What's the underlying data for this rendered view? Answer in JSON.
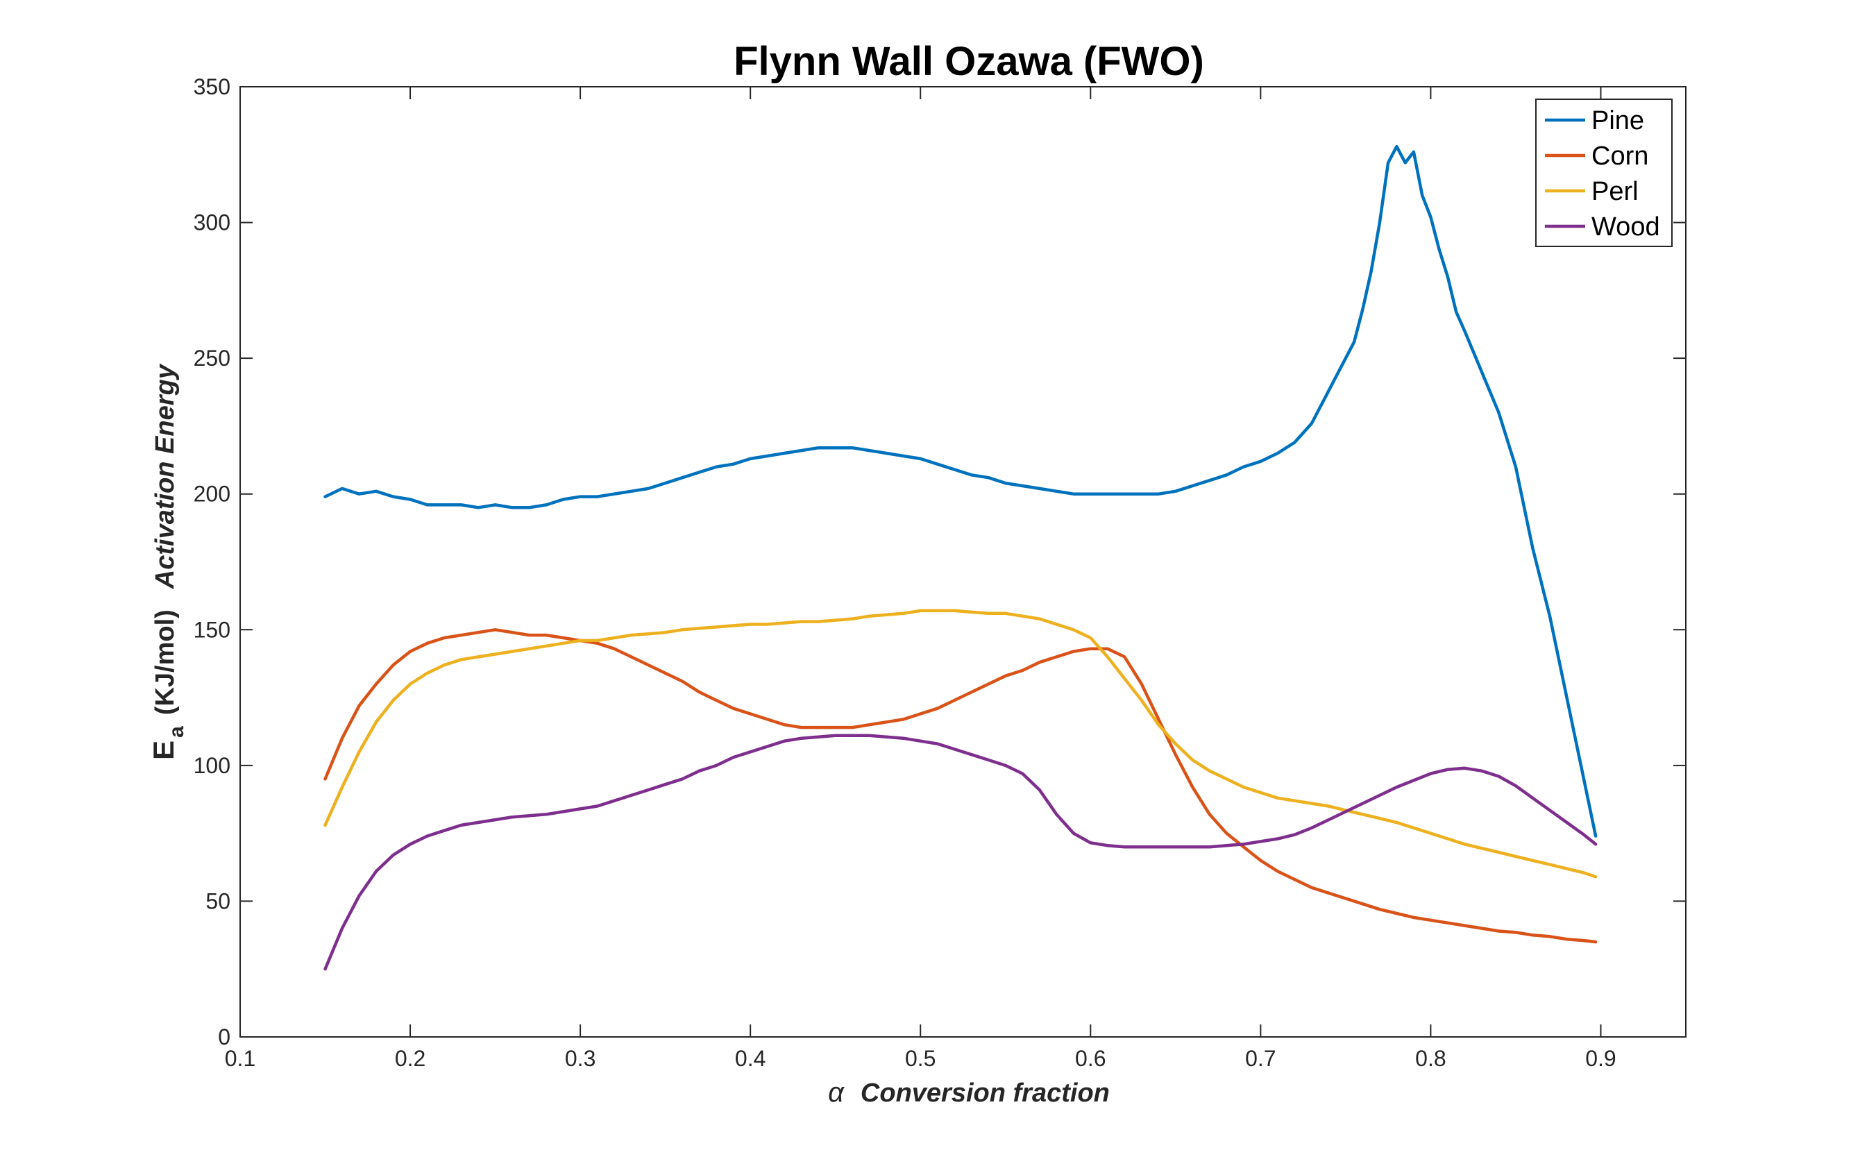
{
  "chart_data": {
    "type": "line",
    "title": "Flynn Wall Ozawa (FWO)",
    "xlabel": {
      "symbol": "α",
      "text": "Conversion fraction"
    },
    "ylabel": {
      "symbol": "E",
      "subscript": "a",
      "unit": "(KJ/mol)",
      "text": "Activation Energy"
    },
    "xlim": [
      0.1,
      0.95
    ],
    "ylim": [
      0,
      350
    ],
    "xticks": [
      0.1,
      0.2,
      0.3,
      0.4,
      0.5,
      0.6,
      0.7,
      0.8,
      0.9
    ],
    "xtick_labels": [
      "0.1",
      "0.2",
      "0.3",
      "0.4",
      "0.5",
      "0.6",
      "0.7",
      "0.8",
      "0.9"
    ],
    "yticks": [
      0,
      50,
      100,
      150,
      200,
      250,
      300,
      350
    ],
    "ytick_labels": [
      "0",
      "50",
      "100",
      "150",
      "200",
      "250",
      "300",
      "350"
    ],
    "grid": false,
    "legend_position": "top-right",
    "series": [
      {
        "name": "Pine",
        "color": "#0072BD",
        "points": [
          [
            0.15,
            199
          ],
          [
            0.16,
            202
          ],
          [
            0.17,
            200
          ],
          [
            0.18,
            201
          ],
          [
            0.19,
            199
          ],
          [
            0.2,
            198
          ],
          [
            0.21,
            196
          ],
          [
            0.22,
            196
          ],
          [
            0.23,
            196
          ],
          [
            0.24,
            195
          ],
          [
            0.25,
            196
          ],
          [
            0.26,
            195
          ],
          [
            0.27,
            195
          ],
          [
            0.28,
            196
          ],
          [
            0.29,
            198
          ],
          [
            0.3,
            199
          ],
          [
            0.31,
            199
          ],
          [
            0.32,
            200
          ],
          [
            0.33,
            201
          ],
          [
            0.34,
            202
          ],
          [
            0.35,
            204
          ],
          [
            0.36,
            206
          ],
          [
            0.37,
            208
          ],
          [
            0.38,
            210
          ],
          [
            0.39,
            211
          ],
          [
            0.4,
            213
          ],
          [
            0.41,
            214
          ],
          [
            0.42,
            215
          ],
          [
            0.43,
            216
          ],
          [
            0.44,
            217
          ],
          [
            0.45,
            217
          ],
          [
            0.46,
            217
          ],
          [
            0.47,
            216
          ],
          [
            0.48,
            215
          ],
          [
            0.49,
            214
          ],
          [
            0.5,
            213
          ],
          [
            0.51,
            211
          ],
          [
            0.52,
            209
          ],
          [
            0.53,
            207
          ],
          [
            0.54,
            206
          ],
          [
            0.55,
            204
          ],
          [
            0.56,
            203
          ],
          [
            0.57,
            202
          ],
          [
            0.58,
            201
          ],
          [
            0.59,
            200
          ],
          [
            0.6,
            200
          ],
          [
            0.61,
            200
          ],
          [
            0.62,
            200
          ],
          [
            0.63,
            200
          ],
          [
            0.64,
            200
          ],
          [
            0.65,
            201
          ],
          [
            0.66,
            203
          ],
          [
            0.67,
            205
          ],
          [
            0.68,
            207
          ],
          [
            0.69,
            210
          ],
          [
            0.7,
            212
          ],
          [
            0.71,
            215
          ],
          [
            0.72,
            219
          ],
          [
            0.73,
            226
          ],
          [
            0.74,
            238
          ],
          [
            0.75,
            250
          ],
          [
            0.755,
            256
          ],
          [
            0.76,
            268
          ],
          [
            0.765,
            282
          ],
          [
            0.77,
            300
          ],
          [
            0.775,
            322
          ],
          [
            0.78,
            328
          ],
          [
            0.785,
            322
          ],
          [
            0.79,
            326
          ],
          [
            0.795,
            310
          ],
          [
            0.8,
            302
          ],
          [
            0.805,
            290
          ],
          [
            0.81,
            280
          ],
          [
            0.815,
            267
          ],
          [
            0.82,
            260
          ],
          [
            0.83,
            245
          ],
          [
            0.84,
            230
          ],
          [
            0.85,
            210
          ],
          [
            0.86,
            180
          ],
          [
            0.87,
            155
          ],
          [
            0.88,
            125
          ],
          [
            0.89,
            95
          ],
          [
            0.897,
            74
          ]
        ]
      },
      {
        "name": "Corn",
        "color": "#D95319",
        "points": [
          [
            0.15,
            95
          ],
          [
            0.16,
            110
          ],
          [
            0.17,
            122
          ],
          [
            0.18,
            130
          ],
          [
            0.19,
            137
          ],
          [
            0.2,
            142
          ],
          [
            0.21,
            145
          ],
          [
            0.22,
            147
          ],
          [
            0.23,
            148
          ],
          [
            0.24,
            149
          ],
          [
            0.25,
            150
          ],
          [
            0.26,
            149
          ],
          [
            0.27,
            148
          ],
          [
            0.28,
            148
          ],
          [
            0.29,
            147
          ],
          [
            0.3,
            146
          ],
          [
            0.31,
            145
          ],
          [
            0.32,
            143
          ],
          [
            0.33,
            140
          ],
          [
            0.34,
            137
          ],
          [
            0.35,
            134
          ],
          [
            0.36,
            131
          ],
          [
            0.37,
            127
          ],
          [
            0.38,
            124
          ],
          [
            0.39,
            121
          ],
          [
            0.4,
            119
          ],
          [
            0.41,
            117
          ],
          [
            0.42,
            115
          ],
          [
            0.43,
            114
          ],
          [
            0.44,
            114
          ],
          [
            0.45,
            114
          ],
          [
            0.46,
            114
          ],
          [
            0.47,
            115
          ],
          [
            0.48,
            116
          ],
          [
            0.49,
            117
          ],
          [
            0.5,
            119
          ],
          [
            0.51,
            121
          ],
          [
            0.52,
            124
          ],
          [
            0.53,
            127
          ],
          [
            0.54,
            130
          ],
          [
            0.55,
            133
          ],
          [
            0.56,
            135
          ],
          [
            0.57,
            138
          ],
          [
            0.58,
            140
          ],
          [
            0.59,
            142
          ],
          [
            0.6,
            143
          ],
          [
            0.61,
            143
          ],
          [
            0.62,
            140
          ],
          [
            0.63,
            130
          ],
          [
            0.64,
            117
          ],
          [
            0.65,
            104
          ],
          [
            0.66,
            92
          ],
          [
            0.67,
            82
          ],
          [
            0.68,
            75
          ],
          [
            0.69,
            70
          ],
          [
            0.7,
            65
          ],
          [
            0.71,
            61
          ],
          [
            0.72,
            58
          ],
          [
            0.73,
            55
          ],
          [
            0.74,
            53
          ],
          [
            0.75,
            51
          ],
          [
            0.76,
            49
          ],
          [
            0.77,
            47
          ],
          [
            0.78,
            45.5
          ],
          [
            0.79,
            44
          ],
          [
            0.8,
            43
          ],
          [
            0.81,
            42
          ],
          [
            0.82,
            41
          ],
          [
            0.83,
            40
          ],
          [
            0.84,
            39
          ],
          [
            0.85,
            38.5
          ],
          [
            0.86,
            37.5
          ],
          [
            0.87,
            37
          ],
          [
            0.88,
            36
          ],
          [
            0.89,
            35.5
          ],
          [
            0.897,
            35
          ]
        ]
      },
      {
        "name": "Perl",
        "color": "#EDB120",
        "points": [
          [
            0.15,
            78
          ],
          [
            0.16,
            92
          ],
          [
            0.17,
            105
          ],
          [
            0.18,
            116
          ],
          [
            0.19,
            124
          ],
          [
            0.2,
            130
          ],
          [
            0.21,
            134
          ],
          [
            0.22,
            137
          ],
          [
            0.23,
            139
          ],
          [
            0.24,
            140
          ],
          [
            0.25,
            141
          ],
          [
            0.26,
            142
          ],
          [
            0.27,
            143
          ],
          [
            0.28,
            144
          ],
          [
            0.29,
            145
          ],
          [
            0.3,
            146
          ],
          [
            0.31,
            146
          ],
          [
            0.32,
            147
          ],
          [
            0.33,
            148
          ],
          [
            0.34,
            148.5
          ],
          [
            0.35,
            149
          ],
          [
            0.36,
            150
          ],
          [
            0.37,
            150.5
          ],
          [
            0.38,
            151
          ],
          [
            0.39,
            151.5
          ],
          [
            0.4,
            152
          ],
          [
            0.41,
            152
          ],
          [
            0.42,
            152.5
          ],
          [
            0.43,
            153
          ],
          [
            0.44,
            153
          ],
          [
            0.45,
            153.5
          ],
          [
            0.46,
            154
          ],
          [
            0.47,
            155
          ],
          [
            0.48,
            155.5
          ],
          [
            0.49,
            156
          ],
          [
            0.5,
            157
          ],
          [
            0.51,
            157
          ],
          [
            0.52,
            157
          ],
          [
            0.53,
            156.5
          ],
          [
            0.54,
            156
          ],
          [
            0.55,
            156
          ],
          [
            0.56,
            155
          ],
          [
            0.57,
            154
          ],
          [
            0.58,
            152
          ],
          [
            0.59,
            150
          ],
          [
            0.6,
            147
          ],
          [
            0.61,
            140
          ],
          [
            0.62,
            132
          ],
          [
            0.63,
            124
          ],
          [
            0.64,
            115
          ],
          [
            0.65,
            108
          ],
          [
            0.66,
            102
          ],
          [
            0.67,
            98
          ],
          [
            0.68,
            95
          ],
          [
            0.69,
            92
          ],
          [
            0.7,
            90
          ],
          [
            0.71,
            88
          ],
          [
            0.72,
            87
          ],
          [
            0.73,
            86
          ],
          [
            0.74,
            85
          ],
          [
            0.75,
            83.5
          ],
          [
            0.76,
            82
          ],
          [
            0.77,
            80.5
          ],
          [
            0.78,
            79
          ],
          [
            0.79,
            77
          ],
          [
            0.8,
            75
          ],
          [
            0.81,
            73
          ],
          [
            0.82,
            71
          ],
          [
            0.83,
            69.5
          ],
          [
            0.84,
            68
          ],
          [
            0.85,
            66.5
          ],
          [
            0.86,
            65
          ],
          [
            0.87,
            63.5
          ],
          [
            0.88,
            62
          ],
          [
            0.89,
            60.5
          ],
          [
            0.897,
            59
          ]
        ]
      },
      {
        "name": "Wood",
        "color": "#7E2F8E",
        "points": [
          [
            0.15,
            25
          ],
          [
            0.16,
            40
          ],
          [
            0.17,
            52
          ],
          [
            0.18,
            61
          ],
          [
            0.19,
            67
          ],
          [
            0.2,
            71
          ],
          [
            0.21,
            74
          ],
          [
            0.22,
            76
          ],
          [
            0.23,
            78
          ],
          [
            0.24,
            79
          ],
          [
            0.25,
            80
          ],
          [
            0.26,
            81
          ],
          [
            0.27,
            81.5
          ],
          [
            0.28,
            82
          ],
          [
            0.29,
            83
          ],
          [
            0.3,
            84
          ],
          [
            0.31,
            85
          ],
          [
            0.32,
            87
          ],
          [
            0.33,
            89
          ],
          [
            0.34,
            91
          ],
          [
            0.35,
            93
          ],
          [
            0.36,
            95
          ],
          [
            0.37,
            98
          ],
          [
            0.38,
            100
          ],
          [
            0.39,
            103
          ],
          [
            0.4,
            105
          ],
          [
            0.41,
            107
          ],
          [
            0.42,
            109
          ],
          [
            0.43,
            110
          ],
          [
            0.44,
            110.5
          ],
          [
            0.45,
            111
          ],
          [
            0.46,
            111
          ],
          [
            0.47,
            111
          ],
          [
            0.48,
            110.5
          ],
          [
            0.49,
            110
          ],
          [
            0.5,
            109
          ],
          [
            0.51,
            108
          ],
          [
            0.52,
            106
          ],
          [
            0.53,
            104
          ],
          [
            0.54,
            102
          ],
          [
            0.55,
            100
          ],
          [
            0.56,
            97
          ],
          [
            0.57,
            91
          ],
          [
            0.58,
            82
          ],
          [
            0.59,
            75
          ],
          [
            0.6,
            71.5
          ],
          [
            0.61,
            70.5
          ],
          [
            0.62,
            70
          ],
          [
            0.63,
            70
          ],
          [
            0.64,
            70
          ],
          [
            0.65,
            70
          ],
          [
            0.66,
            70
          ],
          [
            0.67,
            70
          ],
          [
            0.68,
            70.5
          ],
          [
            0.69,
            71
          ],
          [
            0.7,
            72
          ],
          [
            0.71,
            73
          ],
          [
            0.72,
            74.5
          ],
          [
            0.73,
            77
          ],
          [
            0.74,
            80
          ],
          [
            0.75,
            83
          ],
          [
            0.76,
            86
          ],
          [
            0.77,
            89
          ],
          [
            0.78,
            92
          ],
          [
            0.79,
            94.5
          ],
          [
            0.8,
            97
          ],
          [
            0.81,
            98.5
          ],
          [
            0.82,
            99
          ],
          [
            0.83,
            98
          ],
          [
            0.84,
            96
          ],
          [
            0.85,
            92.5
          ],
          [
            0.86,
            88
          ],
          [
            0.87,
            83.5
          ],
          [
            0.88,
            79
          ],
          [
            0.89,
            74.5
          ],
          [
            0.897,
            71
          ]
        ]
      }
    ]
  }
}
